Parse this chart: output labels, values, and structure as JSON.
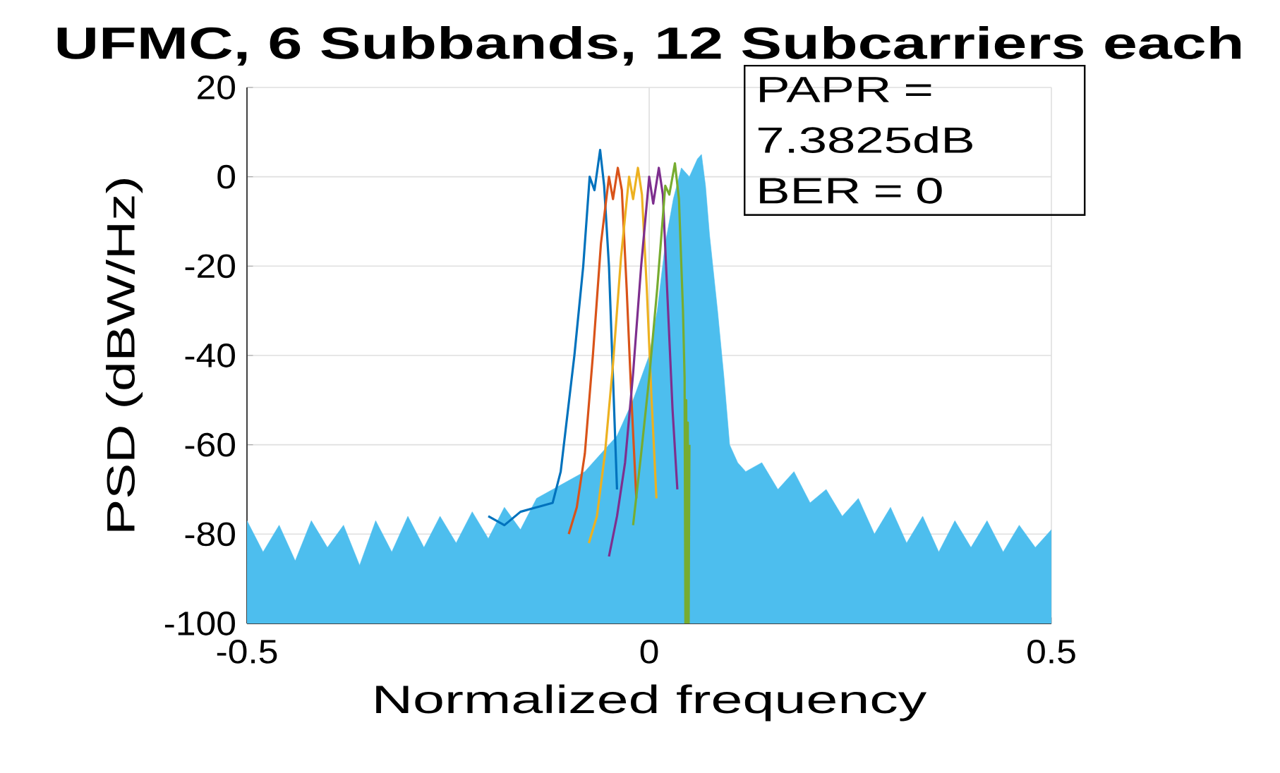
{
  "chart_data": {
    "type": "line",
    "title": "UFMC, 6 Subbands, 12 Subcarriers each",
    "xlabel": "Normalized frequency",
    "ylabel": "PSD (dBW/Hz)",
    "xlim": [
      -0.5,
      0.5
    ],
    "ylim": [
      -100,
      20
    ],
    "xticks": [
      -0.5,
      0,
      0.5
    ],
    "yticks": [
      -100,
      -80,
      -60,
      -40,
      -20,
      0,
      20
    ],
    "grid": true,
    "annotations": [
      "PAPR = 7.3825dB",
      "BER = 0"
    ],
    "series": [
      {
        "type": "area",
        "color": "#4dbeee",
        "x": [
          -0.5,
          -0.5,
          -0.48,
          -0.46,
          -0.44,
          -0.42,
          -0.4,
          -0.38,
          -0.36,
          -0.34,
          -0.32,
          -0.3,
          -0.28,
          -0.26,
          -0.24,
          -0.22,
          -0.2,
          -0.18,
          -0.16,
          -0.14,
          -0.12,
          -0.1,
          -0.08,
          -0.06,
          -0.04,
          -0.02,
          0,
          0.01,
          0.02,
          0.03,
          0.04,
          0.05,
          0.06,
          0.065,
          0.07,
          0.075,
          0.085,
          0.093,
          0.1,
          0.11,
          0.12,
          0.14,
          0.16,
          0.18,
          0.2,
          0.22,
          0.24,
          0.26,
          0.28,
          0.3,
          0.32,
          0.34,
          0.36,
          0.38,
          0.4,
          0.42,
          0.44,
          0.46,
          0.48,
          0.5,
          0.5
        ],
        "values": [
          -100,
          -77,
          -84,
          -78,
          -86,
          -77,
          -83,
          -78,
          -87,
          -77,
          -84,
          -76,
          -83,
          -76,
          -82,
          -75,
          -81,
          -74,
          -79,
          -72,
          -70,
          -68,
          -66,
          -62,
          -58,
          -50,
          -40,
          -30,
          -15,
          -5,
          2,
          0,
          4,
          5,
          -2,
          -13,
          -30,
          -45,
          -60,
          -64,
          -66,
          -64,
          -70,
          -66,
          -73,
          -70,
          -76,
          -72,
          -80,
          -74,
          -82,
          -76,
          -84,
          -77,
          -83,
          -77,
          -84,
          -78,
          -83,
          -79,
          -100
        ]
      },
      {
        "color": "#0072bd",
        "x": [
          -0.2,
          -0.18,
          -0.16,
          -0.14,
          -0.12,
          -0.11,
          -0.093,
          -0.082,
          -0.074,
          -0.068,
          -0.061,
          -0.056,
          -0.05,
          -0.045,
          -0.04
        ],
        "values": [
          -76,
          -78,
          -75,
          -74,
          -73,
          -66,
          -40,
          -20,
          0,
          -3,
          6,
          -2,
          -20,
          -45,
          -70
        ]
      },
      {
        "color": "#d95319",
        "x": [
          -0.1,
          -0.09,
          -0.08,
          -0.07,
          -0.06,
          -0.05,
          -0.045,
          -0.039,
          -0.034,
          -0.028,
          -0.022,
          -0.016
        ],
        "values": [
          -80,
          -74,
          -62,
          -40,
          -15,
          0,
          -5,
          2,
          -3,
          -25,
          -50,
          -72
        ]
      },
      {
        "color": "#edb120",
        "x": [
          -0.075,
          -0.065,
          -0.055,
          -0.045,
          -0.035,
          -0.025,
          -0.02,
          -0.014,
          -0.009,
          -0.003,
          0.003,
          0.009
        ],
        "values": [
          -82,
          -76,
          -62,
          -42,
          -18,
          0,
          -5,
          2,
          -4,
          -25,
          -50,
          -72
        ]
      },
      {
        "color": "#7e2f8e",
        "x": [
          -0.05,
          -0.04,
          -0.03,
          -0.02,
          -0.01,
          0,
          0.005,
          0.012,
          0.017,
          0.023,
          0.029,
          0.035
        ],
        "values": [
          -85,
          -76,
          -64,
          -44,
          -20,
          0,
          -6,
          2,
          -4,
          -28,
          -52,
          -70
        ]
      },
      {
        "color": "#77ac30",
        "x": [
          -0.02,
          -0.01,
          0,
          0.01,
          0.02,
          0.025,
          0.032,
          0.037,
          0.042,
          0.044,
          0.045,
          0.046,
          0.047,
          0.048,
          0.049,
          0.05
        ],
        "values": [
          -78,
          -62,
          -45,
          -25,
          -2,
          -4,
          3,
          -5,
          -30,
          -45,
          -100,
          -50,
          -100,
          -55,
          -100,
          -60
        ]
      }
    ]
  }
}
